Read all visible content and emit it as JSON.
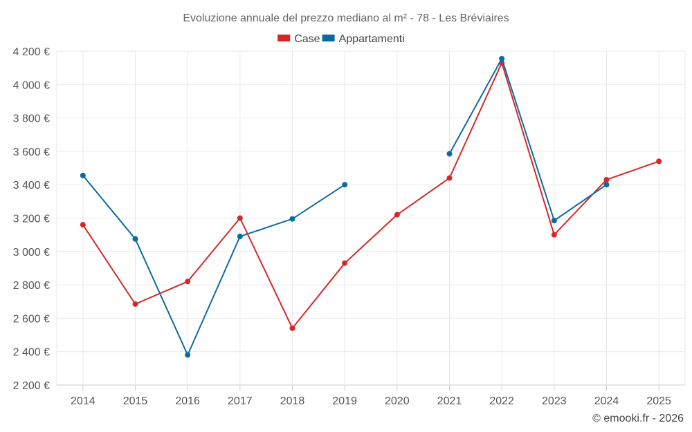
{
  "chart_data": {
    "type": "line",
    "title": "Evoluzione annuale del prezzo mediano al m² - 78 - Les Bréviaires",
    "credit": "© emooki.fr - 2026",
    "categories": [
      "2014",
      "2015",
      "2016",
      "2017",
      "2018",
      "2019",
      "2020",
      "2021",
      "2022",
      "2023",
      "2024",
      "2025"
    ],
    "ylim": [
      2200,
      4200
    ],
    "yticks": [
      2200,
      2400,
      2600,
      2800,
      3000,
      3200,
      3400,
      3600,
      3800,
      4000,
      4200
    ],
    "ytick_labels": [
      "2 200 €",
      "2 400 €",
      "2 600 €",
      "2 800 €",
      "3 000 €",
      "3 200 €",
      "3 400 €",
      "3 600 €",
      "3 800 €",
      "4 000 €",
      "4 200 €"
    ],
    "xlabel": "",
    "ylabel": "",
    "grid": true,
    "legend_position": "top-center",
    "series": [
      {
        "name": "Case",
        "color": "#d62728",
        "values": [
          3160,
          2685,
          2820,
          3200,
          2540,
          2930,
          3220,
          3440,
          4130,
          3100,
          3430,
          3540
        ]
      },
      {
        "name": "Appartamenti",
        "color": "#0b6aa2",
        "values": [
          3455,
          3075,
          2380,
          3090,
          3195,
          3400,
          null,
          3585,
          4155,
          3185,
          3400,
          null
        ]
      }
    ]
  }
}
